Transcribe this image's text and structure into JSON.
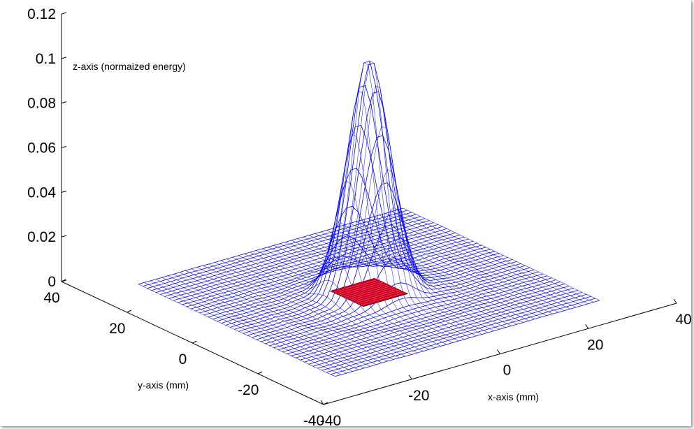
{
  "chart_data": {
    "type": "surface",
    "title": "",
    "xlabel": "x-axis (mm)",
    "ylabel": "y-axis (mm)",
    "zlabel": "z-axis (normaized energy)",
    "xlim": [
      -40,
      40
    ],
    "ylim": [
      -40,
      40
    ],
    "zlim": [
      0,
      0.12
    ],
    "x_ticks": [
      "-40",
      "-20",
      "0",
      "20",
      "40"
    ],
    "y_ticks": [
      "-40",
      "-20",
      "0",
      "20",
      "40"
    ],
    "z_ticks": [
      "0",
      "0.02",
      "0.04",
      "0.06",
      "0.08",
      "0.1",
      "0.12"
    ],
    "surface": {
      "shape": "gaussian",
      "x_range": [
        -30,
        30
      ],
      "y_range": [
        -30,
        30
      ],
      "peak_z": 0.105,
      "center": [
        0,
        0
      ],
      "sigma_mm": 4,
      "color": "#0000ff"
    },
    "patch": {
      "x_range": [
        -5,
        5
      ],
      "y_range": [
        -5,
        5
      ],
      "z": 0,
      "color": "#cc0022"
    },
    "grid": false
  }
}
